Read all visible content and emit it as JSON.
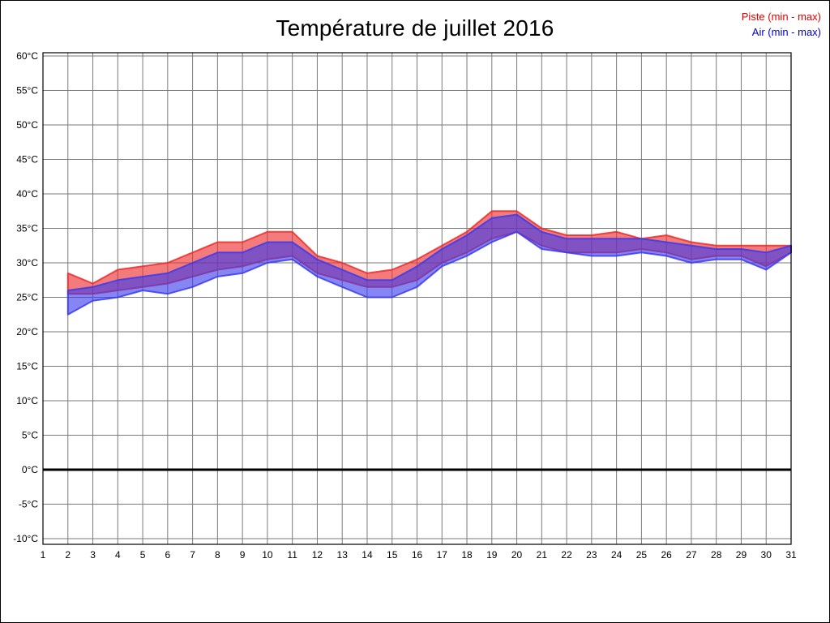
{
  "chart_data": {
    "type": "area",
    "title": "Température de juillet 2016",
    "subtitle": "",
    "xlabel": "",
    "ylabel": "",
    "grid": true,
    "legend_position": "top-right",
    "ylim": [
      -10,
      60
    ],
    "y_ticks": [
      60,
      55,
      50,
      45,
      40,
      35,
      30,
      25,
      20,
      15,
      10,
      5,
      0,
      -5,
      -10
    ],
    "y_tick_suffix": "°C",
    "zero_line_value": 0,
    "x_ticks": [
      1,
      2,
      3,
      4,
      5,
      6,
      7,
      8,
      9,
      10,
      11,
      12,
      13,
      14,
      15,
      16,
      17,
      18,
      19,
      20,
      21,
      22,
      23,
      24,
      25,
      26,
      27,
      28,
      29,
      30,
      31
    ],
    "x": [
      2,
      3,
      4,
      5,
      6,
      7,
      8,
      9,
      10,
      11,
      12,
      13,
      14,
      15,
      16,
      17,
      18,
      19,
      20,
      21,
      22,
      23,
      24,
      25,
      26,
      27,
      28,
      29,
      30,
      31
    ],
    "series": [
      {
        "name": "Piste (min - max)",
        "legend_color": "#dd0000",
        "fill_color": "#ee2a2a",
        "min": [
          25.5,
          25.5,
          26,
          26.5,
          27,
          28,
          29,
          29.5,
          30.5,
          31,
          28.5,
          27.5,
          26.5,
          26.5,
          27.5,
          30,
          31.5,
          33.5,
          34.5,
          32.5,
          31.5,
          31.5,
          31.5,
          32,
          31.5,
          30.5,
          31,
          31,
          29.5,
          31.5
        ],
        "max": [
          28.5,
          27,
          29,
          29.5,
          30,
          31.5,
          33,
          33,
          34.5,
          34.5,
          31,
          30,
          28.5,
          29,
          30.5,
          32.5,
          34.5,
          37.5,
          37.5,
          35,
          34,
          34,
          34.5,
          33.5,
          34,
          33,
          32.5,
          32.5,
          32.5,
          32.5
        ]
      },
      {
        "name": "Air (min - max)",
        "legend_color": "#0000cc",
        "fill_color": "#3a3aee",
        "min": [
          22.5,
          24.5,
          25,
          26,
          25.5,
          26.5,
          28,
          28.5,
          30,
          30.5,
          28,
          26.5,
          25,
          25,
          26.5,
          29.5,
          31,
          33,
          34.5,
          32,
          31.5,
          31,
          31,
          31.5,
          31,
          30,
          30.5,
          30.5,
          29,
          31.5
        ],
        "max": [
          26,
          26.5,
          27.5,
          28,
          28.5,
          30,
          31.5,
          31.5,
          33,
          33,
          30.5,
          29,
          27.5,
          27.5,
          29.5,
          32,
          34,
          36.5,
          37,
          34.5,
          33.5,
          33.5,
          33.5,
          33.5,
          33,
          32.5,
          32,
          32,
          31.5,
          32.5
        ]
      }
    ]
  }
}
